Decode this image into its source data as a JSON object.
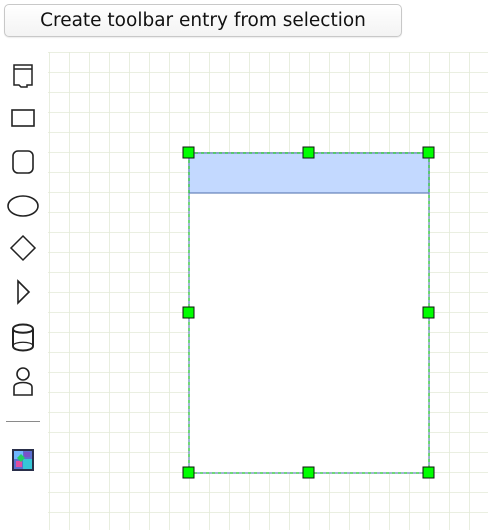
{
  "toolbar_button": {
    "label": "Create toolbar entry from selection"
  },
  "palette": {
    "items": [
      {
        "name": "swimlane-tool-icon"
      },
      {
        "name": "rectangle-tool-icon"
      },
      {
        "name": "rounded-rectangle-tool-icon"
      },
      {
        "name": "ellipse-tool-icon"
      },
      {
        "name": "rhombus-tool-icon"
      },
      {
        "name": "triangle-tool-icon"
      },
      {
        "name": "cylinder-tool-icon"
      },
      {
        "name": "actor-tool-icon"
      },
      {
        "name": "custom-entry-tool-icon"
      }
    ]
  },
  "colors": {
    "grid": "#e3ead7",
    "canvas_bg": "#ffffff",
    "selection_handle": "#00ff00",
    "selection_outline": "#00cc00",
    "swimlane_header_fill": "#c3d9ff",
    "swimlane_stroke": "#6482b9"
  }
}
